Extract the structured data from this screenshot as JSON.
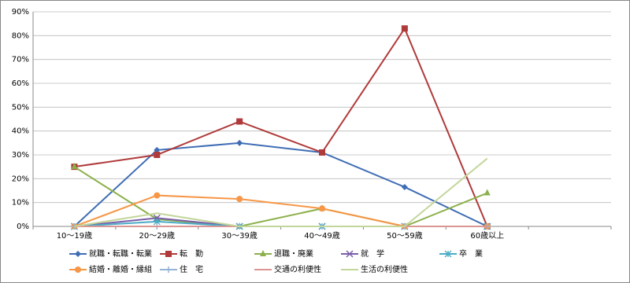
{
  "chart_data": {
    "type": "line",
    "categories": [
      "10〜19歳",
      "20〜29歳",
      "30〜39歳",
      "40〜49歳",
      "50〜59歳",
      "60歳以上",
      null
    ],
    "series": [
      {
        "name": "就職・転職・転業",
        "color": "#3f6db5",
        "marker": "diamond",
        "values": [
          0,
          32,
          35,
          31,
          16.5,
          0,
          null
        ]
      },
      {
        "name": "転　勤",
        "color": "#b03a3a",
        "marker": "square",
        "values": [
          25,
          30,
          44,
          31,
          83,
          0,
          null
        ]
      },
      {
        "name": "退職・廃業",
        "color": "#8cb04a",
        "marker": "triangle",
        "values": [
          25,
          3,
          0,
          7.5,
          0,
          14,
          null
        ]
      },
      {
        "name": "就　学",
        "color": "#7a5ea8",
        "marker": "x",
        "values": [
          0,
          3.5,
          0,
          0,
          0,
          0,
          null
        ]
      },
      {
        "name": "卒　業",
        "color": "#4bacc6",
        "marker": "star",
        "values": [
          0,
          2,
          0,
          0,
          0,
          0,
          null
        ]
      },
      {
        "name": "結婚・離婚・縁組",
        "color": "#f79646",
        "marker": "circle",
        "values": [
          0,
          13,
          11.5,
          7.5,
          0,
          0,
          null
        ]
      },
      {
        "name": "住　宅",
        "color": "#95b3d7",
        "marker": "plus",
        "values": [
          0,
          0,
          0,
          0,
          0,
          0,
          null
        ]
      },
      {
        "name": "交通の利便性",
        "color": "#d99694",
        "marker": "none",
        "values": [
          0,
          0,
          0,
          0,
          0,
          0,
          null
        ]
      },
      {
        "name": "生活の利便性",
        "color": "#c3d69b",
        "marker": "none",
        "values": [
          0,
          5.5,
          0,
          0,
          0,
          28.5,
          null
        ]
      }
    ],
    "ylim": [
      0,
      90
    ],
    "yticks": [
      {
        "value": 0,
        "label": "0%"
      },
      {
        "value": 10,
        "label": "10%"
      },
      {
        "value": 20,
        "label": "20%"
      },
      {
        "value": 30,
        "label": "30%"
      },
      {
        "value": 40,
        "label": "40%"
      },
      {
        "value": 50,
        "label": "50%"
      },
      {
        "value": 60,
        "label": "60%"
      },
      {
        "value": 70,
        "label": "70%"
      },
      {
        "value": 80,
        "label": "80%"
      },
      {
        "value": 90,
        "label": "90%"
      }
    ],
    "grid": true
  }
}
